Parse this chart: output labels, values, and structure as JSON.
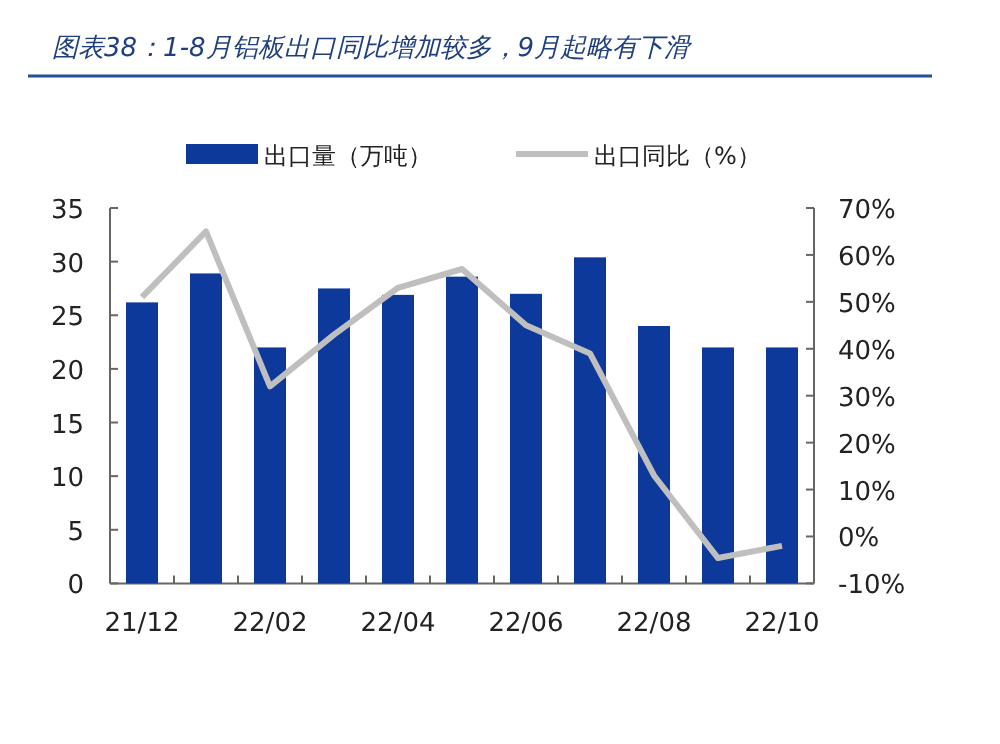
{
  "chart_data": {
    "type": "bar",
    "title": "图表38：1-8月铝板出口同比增加较多，9月起略有下滑",
    "categories": [
      "21/12",
      null,
      "22/02",
      null,
      "22/04",
      null,
      "22/06",
      null,
      "22/08",
      null,
      "22/10"
    ],
    "series": [
      {
        "name": "出口量（万吨）",
        "color": "#0d3a9a",
        "values": [
          26.2,
          28.9,
          22,
          27.5,
          26.9,
          28.6,
          27,
          30.4,
          24,
          22,
          22
        ]
      },
      {
        "name": "出口同比（%）",
        "type": "line",
        "axis": "y2",
        "color": "#bfbfbf",
        "values": [
          51,
          65,
          32,
          43,
          53,
          57,
          45,
          39,
          13,
          -4.6,
          -2
        ]
      }
    ],
    "ylim": [
      0,
      35
    ],
    "yticks": [
      0,
      5,
      10,
      15,
      20,
      25,
      30,
      35
    ],
    "y2lim": [
      -10,
      70
    ],
    "y2ticks": [
      {
        "value": -10,
        "label": "-10%"
      },
      {
        "value": 0,
        "label": "0%"
      },
      {
        "value": 10,
        "label": "10%"
      },
      {
        "value": 20,
        "label": "20%"
      },
      {
        "value": 30,
        "label": "30%"
      },
      {
        "value": 40,
        "label": "40%"
      },
      {
        "value": 50,
        "label": "50%"
      },
      {
        "value": 60,
        "label": "60%"
      },
      {
        "value": 70,
        "label": "70%"
      }
    ],
    "legend": "top",
    "grid": false
  }
}
